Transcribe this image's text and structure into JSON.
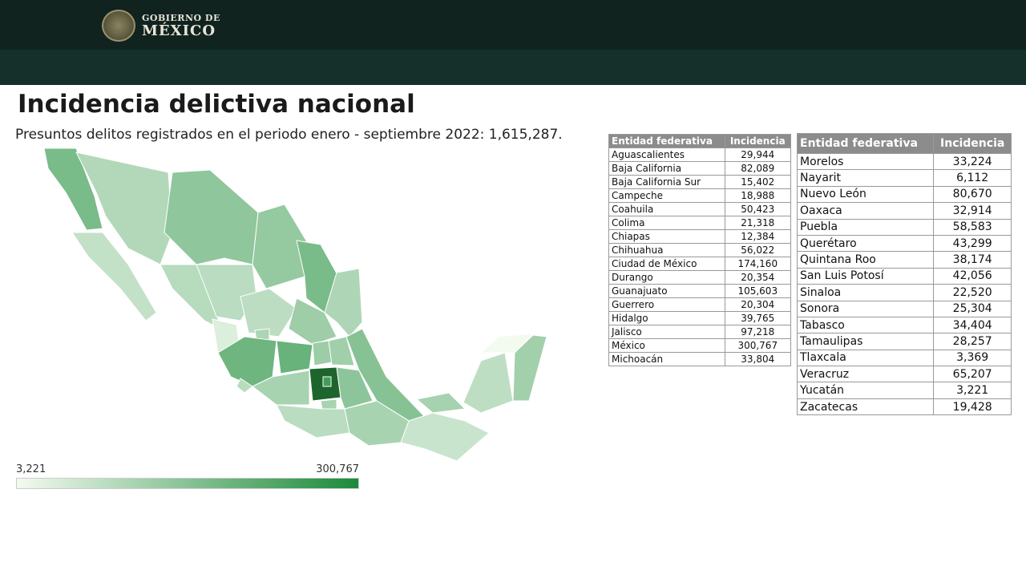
{
  "header": {
    "logo_line1": "GOBIERNO DE",
    "logo_line2": "MÉXICO"
  },
  "title": "Incidencia delictiva nacional",
  "subtitle": "Presuntos delitos registrados en el periodo enero - septiembre 2022: 1,615,287.",
  "legend": {
    "min": "3,221",
    "max": "300,767",
    "min_value": 3221,
    "max_value": 300767,
    "color_low": "#f3faf0",
    "color_high": "#1c8a3a"
  },
  "table1": {
    "headers": [
      "Entidad federativa",
      "Incidencia"
    ],
    "rows": [
      [
        "Aguascalientes",
        "29,944"
      ],
      [
        "Baja California",
        "82,089"
      ],
      [
        "Baja California Sur",
        "15,402"
      ],
      [
        "Campeche",
        "18,988"
      ],
      [
        "Coahuila",
        "50,423"
      ],
      [
        "Colima",
        "21,318"
      ],
      [
        "Chiapas",
        "12,384"
      ],
      [
        "Chihuahua",
        "56,022"
      ],
      [
        "Ciudad de México",
        "174,160"
      ],
      [
        "Durango",
        "20,354"
      ],
      [
        "Guanajuato",
        "105,603"
      ],
      [
        "Guerrero",
        "20,304"
      ],
      [
        "Hidalgo",
        "39,765"
      ],
      [
        "Jalisco",
        "97,218"
      ],
      [
        "México",
        "300,767"
      ],
      [
        "Michoacán",
        "33,804"
      ]
    ]
  },
  "table2": {
    "headers": [
      "Entidad federativa",
      "Incidencia"
    ],
    "rows": [
      [
        "Morelos",
        "33,224"
      ],
      [
        "Nayarit",
        "6,112"
      ],
      [
        "Nuevo León",
        "80,670"
      ],
      [
        "Oaxaca",
        "32,914"
      ],
      [
        "Puebla",
        "58,583"
      ],
      [
        "Querétaro",
        "43,299"
      ],
      [
        "Quintana Roo",
        "38,174"
      ],
      [
        "San Luis Potosí",
        "42,056"
      ],
      [
        "Sinaloa",
        "22,520"
      ],
      [
        "Sonora",
        "25,304"
      ],
      [
        "Tabasco",
        "34,404"
      ],
      [
        "Tamaulipas",
        "28,257"
      ],
      [
        "Tlaxcala",
        "3,369"
      ],
      [
        "Veracruz",
        "65,207"
      ],
      [
        "Yucatán",
        "3,221"
      ],
      [
        "Zacatecas",
        "19,428"
      ]
    ]
  }
}
